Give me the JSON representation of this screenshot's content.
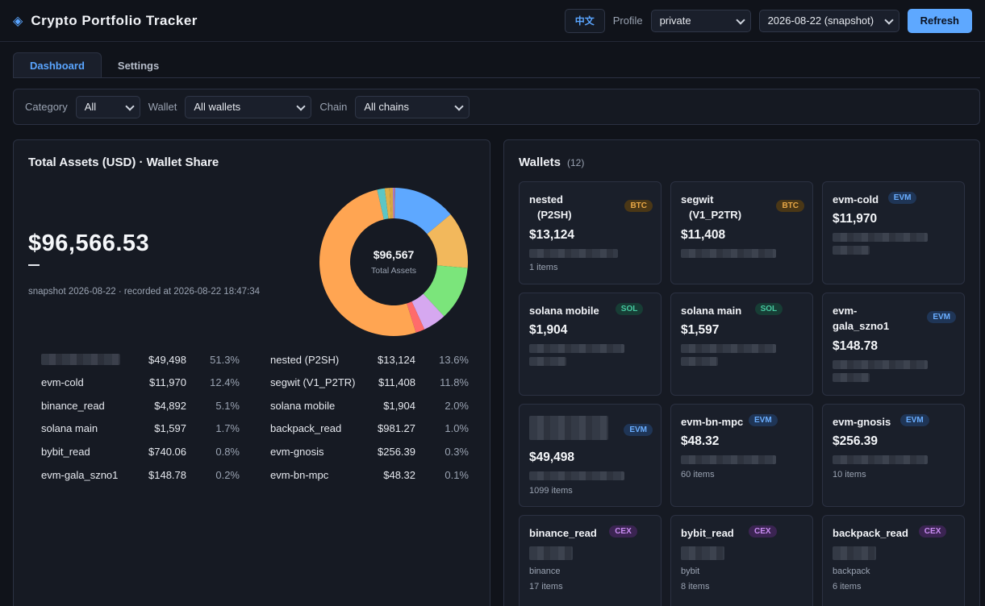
{
  "header": {
    "logo_icon": "◈",
    "title": "Crypto Portfolio Tracker",
    "lang_label": "中文",
    "profile_label": "Profile",
    "profile_value": "private",
    "snapshot_value": "2026-08-22 (snapshot)",
    "refresh_label": "Refresh"
  },
  "tabs": [
    {
      "label": "Dashboard",
      "active": true
    },
    {
      "label": "Settings",
      "active": false
    }
  ],
  "filters": {
    "category_label": "Category",
    "category_value": "All",
    "wallet_label": "Wallet",
    "wallet_value": "All wallets",
    "chain_label": "Chain",
    "chain_value": "All chains"
  },
  "summary": {
    "title": "Total Assets (USD) · Wallet Share",
    "total": "$96,566.53",
    "snapshot_text": "snapshot 2026-08-22 · recorded at 2026-08-22 18:47:34",
    "donut_center_value": "$96,567",
    "donut_center_label": "Total Assets"
  },
  "chart_data": {
    "type": "pie",
    "series": [
      {
        "name": "",
        "value": 49498,
        "color": "#ffa552"
      },
      {
        "name": "nested (P2SH)",
        "value": 13124,
        "color": "#5ea8ff"
      },
      {
        "name": "evm-cold",
        "value": 11970,
        "color": "#f2b85c"
      },
      {
        "name": "segwit (V1_P2TR)",
        "value": 11408,
        "color": "#7be57b"
      },
      {
        "name": "binance_read",
        "value": 4892,
        "color": "#d6a8f0"
      },
      {
        "name": "solana mobile",
        "value": 1904,
        "color": "#ff6b6b"
      },
      {
        "name": "solana main",
        "value": 1597,
        "color": "#5cc6c6"
      },
      {
        "name": "backpack_read",
        "value": 981.27,
        "color": "#dfb04a"
      },
      {
        "name": "bybit_read",
        "value": 740.06,
        "color": "#d8a642"
      },
      {
        "name": "evm-gnosis",
        "value": 256.39,
        "color": "#a78bfa"
      },
      {
        "name": "evm-gala_szno1",
        "value": 148.78,
        "color": "#ff5a5a"
      },
      {
        "name": "evm-bn-mpc",
        "value": 48.32,
        "color": "#64d2ff"
      }
    ]
  },
  "share_left": [
    {
      "name": "",
      "value": "$49,498",
      "pct": "51.3%",
      "blurred": true
    },
    {
      "name": "evm-cold",
      "value": "$11,970",
      "pct": "12.4%"
    },
    {
      "name": "binance_read",
      "value": "$4,892",
      "pct": "5.1%"
    },
    {
      "name": "solana main",
      "value": "$1,597",
      "pct": "1.7%"
    },
    {
      "name": "bybit_read",
      "value": "$740.06",
      "pct": "0.8%"
    },
    {
      "name": "evm-gala_szno1",
      "value": "$148.78",
      "pct": "0.2%"
    }
  ],
  "share_right": [
    {
      "name": "nested (P2SH)",
      "value": "$13,124",
      "pct": "13.6%"
    },
    {
      "name": "segwit (V1_P2TR)",
      "value": "$11,408",
      "pct": "11.8%"
    },
    {
      "name": "solana mobile",
      "value": "$1,904",
      "pct": "2.0%"
    },
    {
      "name": "backpack_read",
      "value": "$981.27",
      "pct": "1.0%"
    },
    {
      "name": "evm-gnosis",
      "value": "$256.39",
      "pct": "0.3%"
    },
    {
      "name": "evm-bn-mpc",
      "value": "$48.32",
      "pct": "0.1%"
    }
  ],
  "wallets": {
    "title": "Wallets",
    "count": "(12)",
    "cards": [
      {
        "name": "nested\n(P2SH)",
        "badge": "BTC",
        "value": "$13,124",
        "sub": "1 items"
      },
      {
        "name": "segwit\n(V1_P2TR)",
        "badge": "BTC",
        "value": "$11,408",
        "sub": ""
      },
      {
        "name": "evm-cold",
        "badge": "EVM",
        "value": "$11,970",
        "sub": ""
      },
      {
        "name": "solana mobile",
        "badge": "SOL",
        "value": "$1,904",
        "sub": ""
      },
      {
        "name": "solana main",
        "badge": "SOL",
        "value": "$1,597",
        "sub": ""
      },
      {
        "name": "evm-\ngala_szno1",
        "badge": "EVM",
        "value": "$148.78",
        "sub": ""
      },
      {
        "name": "",
        "badge": "EVM",
        "value": "$49,498",
        "sub": "1099 items"
      },
      {
        "name": "evm-bn-mpc",
        "badge": "EVM",
        "value": "$48.32",
        "sub": "60 items"
      },
      {
        "name": "evm-gnosis",
        "badge": "EVM",
        "value": "$256.39",
        "sub": "10 items"
      },
      {
        "name": "binance_read",
        "badge": "CEX",
        "value": "",
        "sub1": "binance",
        "sub": "17 items"
      },
      {
        "name": "bybit_read",
        "badge": "CEX",
        "value": "",
        "sub1": "bybit",
        "sub": "8 items"
      },
      {
        "name": "backpack_read",
        "badge": "CEX",
        "value": "",
        "sub1": "backpack",
        "sub": "6 items"
      }
    ]
  }
}
